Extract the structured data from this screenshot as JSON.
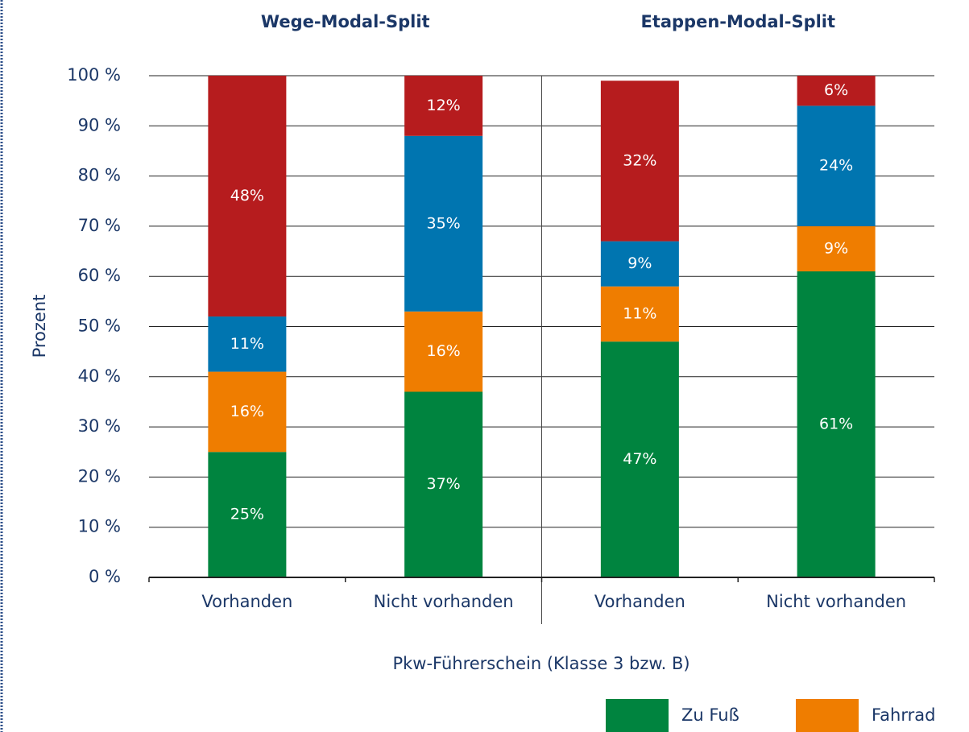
{
  "chart_data": {
    "type": "stacked_bar",
    "group_titles": [
      "Wege-Modal-Split",
      "Etappen-Modal-Split"
    ],
    "categories": [
      "Vorhanden",
      "Nicht vorhanden",
      "Vorhanden",
      "Nicht vorhanden"
    ],
    "x_label": "Pkw-Führerschein (Klasse 3 bzw. B)",
    "y_label": "Prozent",
    "series": [
      {
        "name": "Zu Fuß",
        "color": "#00843f",
        "values": [
          25,
          37,
          47,
          61
        ],
        "value_labels": [
          "25%",
          "37%",
          "47%",
          "61%"
        ]
      },
      {
        "name": "Fahrrad",
        "color": "#ef7d00",
        "values": [
          16,
          16,
          11,
          9
        ],
        "value_labels": [
          "16%",
          "16%",
          "11%",
          "9%"
        ]
      },
      {
        "color": "#0075b0",
        "values": [
          11,
          35,
          9,
          24
        ],
        "value_labels": [
          "11%",
          "35%",
          "9%",
          "24%"
        ]
      },
      {
        "color": "#b61c1e",
        "values": [
          48,
          12,
          32,
          6
        ],
        "value_labels": [
          "48%",
          "12%",
          "32%",
          "6%"
        ]
      }
    ],
    "ylim": [
      0,
      100
    ],
    "yticks": [
      {
        "value": 0,
        "label": "0 %"
      },
      {
        "value": 10,
        "label": "10 %"
      },
      {
        "value": 20,
        "label": "20 %"
      },
      {
        "value": 30,
        "label": "30 %"
      },
      {
        "value": 40,
        "label": "40 %"
      },
      {
        "value": 50,
        "label": "50 %"
      },
      {
        "value": 60,
        "label": "60 %"
      },
      {
        "value": 70,
        "label": "70 %"
      },
      {
        "value": 80,
        "label": "80 %"
      },
      {
        "value": 90,
        "label": "90 %"
      },
      {
        "value": 100,
        "label": "100 %"
      }
    ],
    "grid": true
  }
}
